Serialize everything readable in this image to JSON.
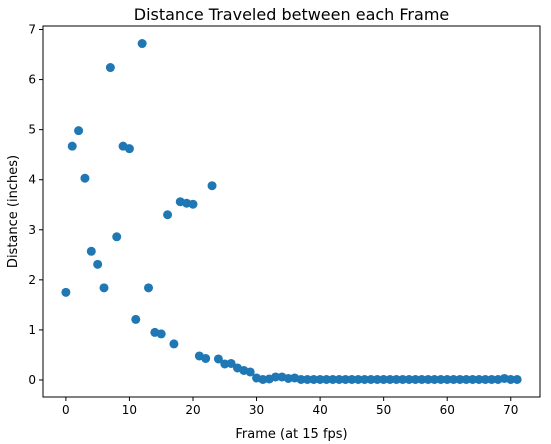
{
  "chart_data": {
    "type": "scatter",
    "title": "Distance Traveled between each Frame",
    "xlabel": "Frame (at 15 fps)",
    "ylabel": "Distance (inches)",
    "xlim": [
      -3.6,
      74.6
    ],
    "ylim": [
      -0.34,
      7.07
    ],
    "xticks": [
      0,
      10,
      20,
      30,
      40,
      50,
      60,
      70
    ],
    "yticks": [
      0,
      1,
      2,
      3,
      4,
      5,
      6,
      7
    ],
    "grid": false,
    "marker_color": "#1f77b4",
    "x": [
      0,
      1,
      2,
      3,
      4,
      5,
      6,
      7,
      8,
      9,
      10,
      11,
      12,
      13,
      14,
      15,
      16,
      17,
      18,
      19,
      20,
      21,
      22,
      23,
      24,
      25,
      26,
      27,
      28,
      29,
      30,
      31,
      32,
      33,
      34,
      35,
      36,
      37,
      38,
      39,
      40,
      41,
      42,
      43,
      44,
      45,
      46,
      47,
      48,
      49,
      50,
      51,
      52,
      53,
      54,
      55,
      56,
      57,
      58,
      59,
      60,
      61,
      62,
      63,
      64,
      65,
      66,
      67,
      68,
      69,
      70,
      71
    ],
    "y": [
      1.75,
      4.67,
      4.98,
      4.03,
      2.57,
      2.31,
      1.84,
      6.24,
      2.86,
      4.67,
      4.62,
      1.21,
      6.72,
      1.84,
      0.95,
      0.92,
      3.3,
      0.72,
      3.56,
      3.53,
      3.51,
      0.48,
      0.43,
      3.88,
      0.42,
      0.32,
      0.33,
      0.24,
      0.19,
      0.16,
      0.04,
      0.01,
      0.02,
      0.06,
      0.06,
      0.03,
      0.04,
      0.01,
      0.01,
      0.01,
      0.01,
      0.01,
      0.01,
      0.01,
      0.01,
      0.01,
      0.01,
      0.01,
      0.01,
      0.01,
      0.01,
      0.01,
      0.01,
      0.01,
      0.01,
      0.01,
      0.01,
      0.01,
      0.01,
      0.01,
      0.01,
      0.01,
      0.01,
      0.01,
      0.01,
      0.01,
      0.01,
      0.01,
      0.01,
      0.03,
      0.01,
      0.01
    ]
  }
}
